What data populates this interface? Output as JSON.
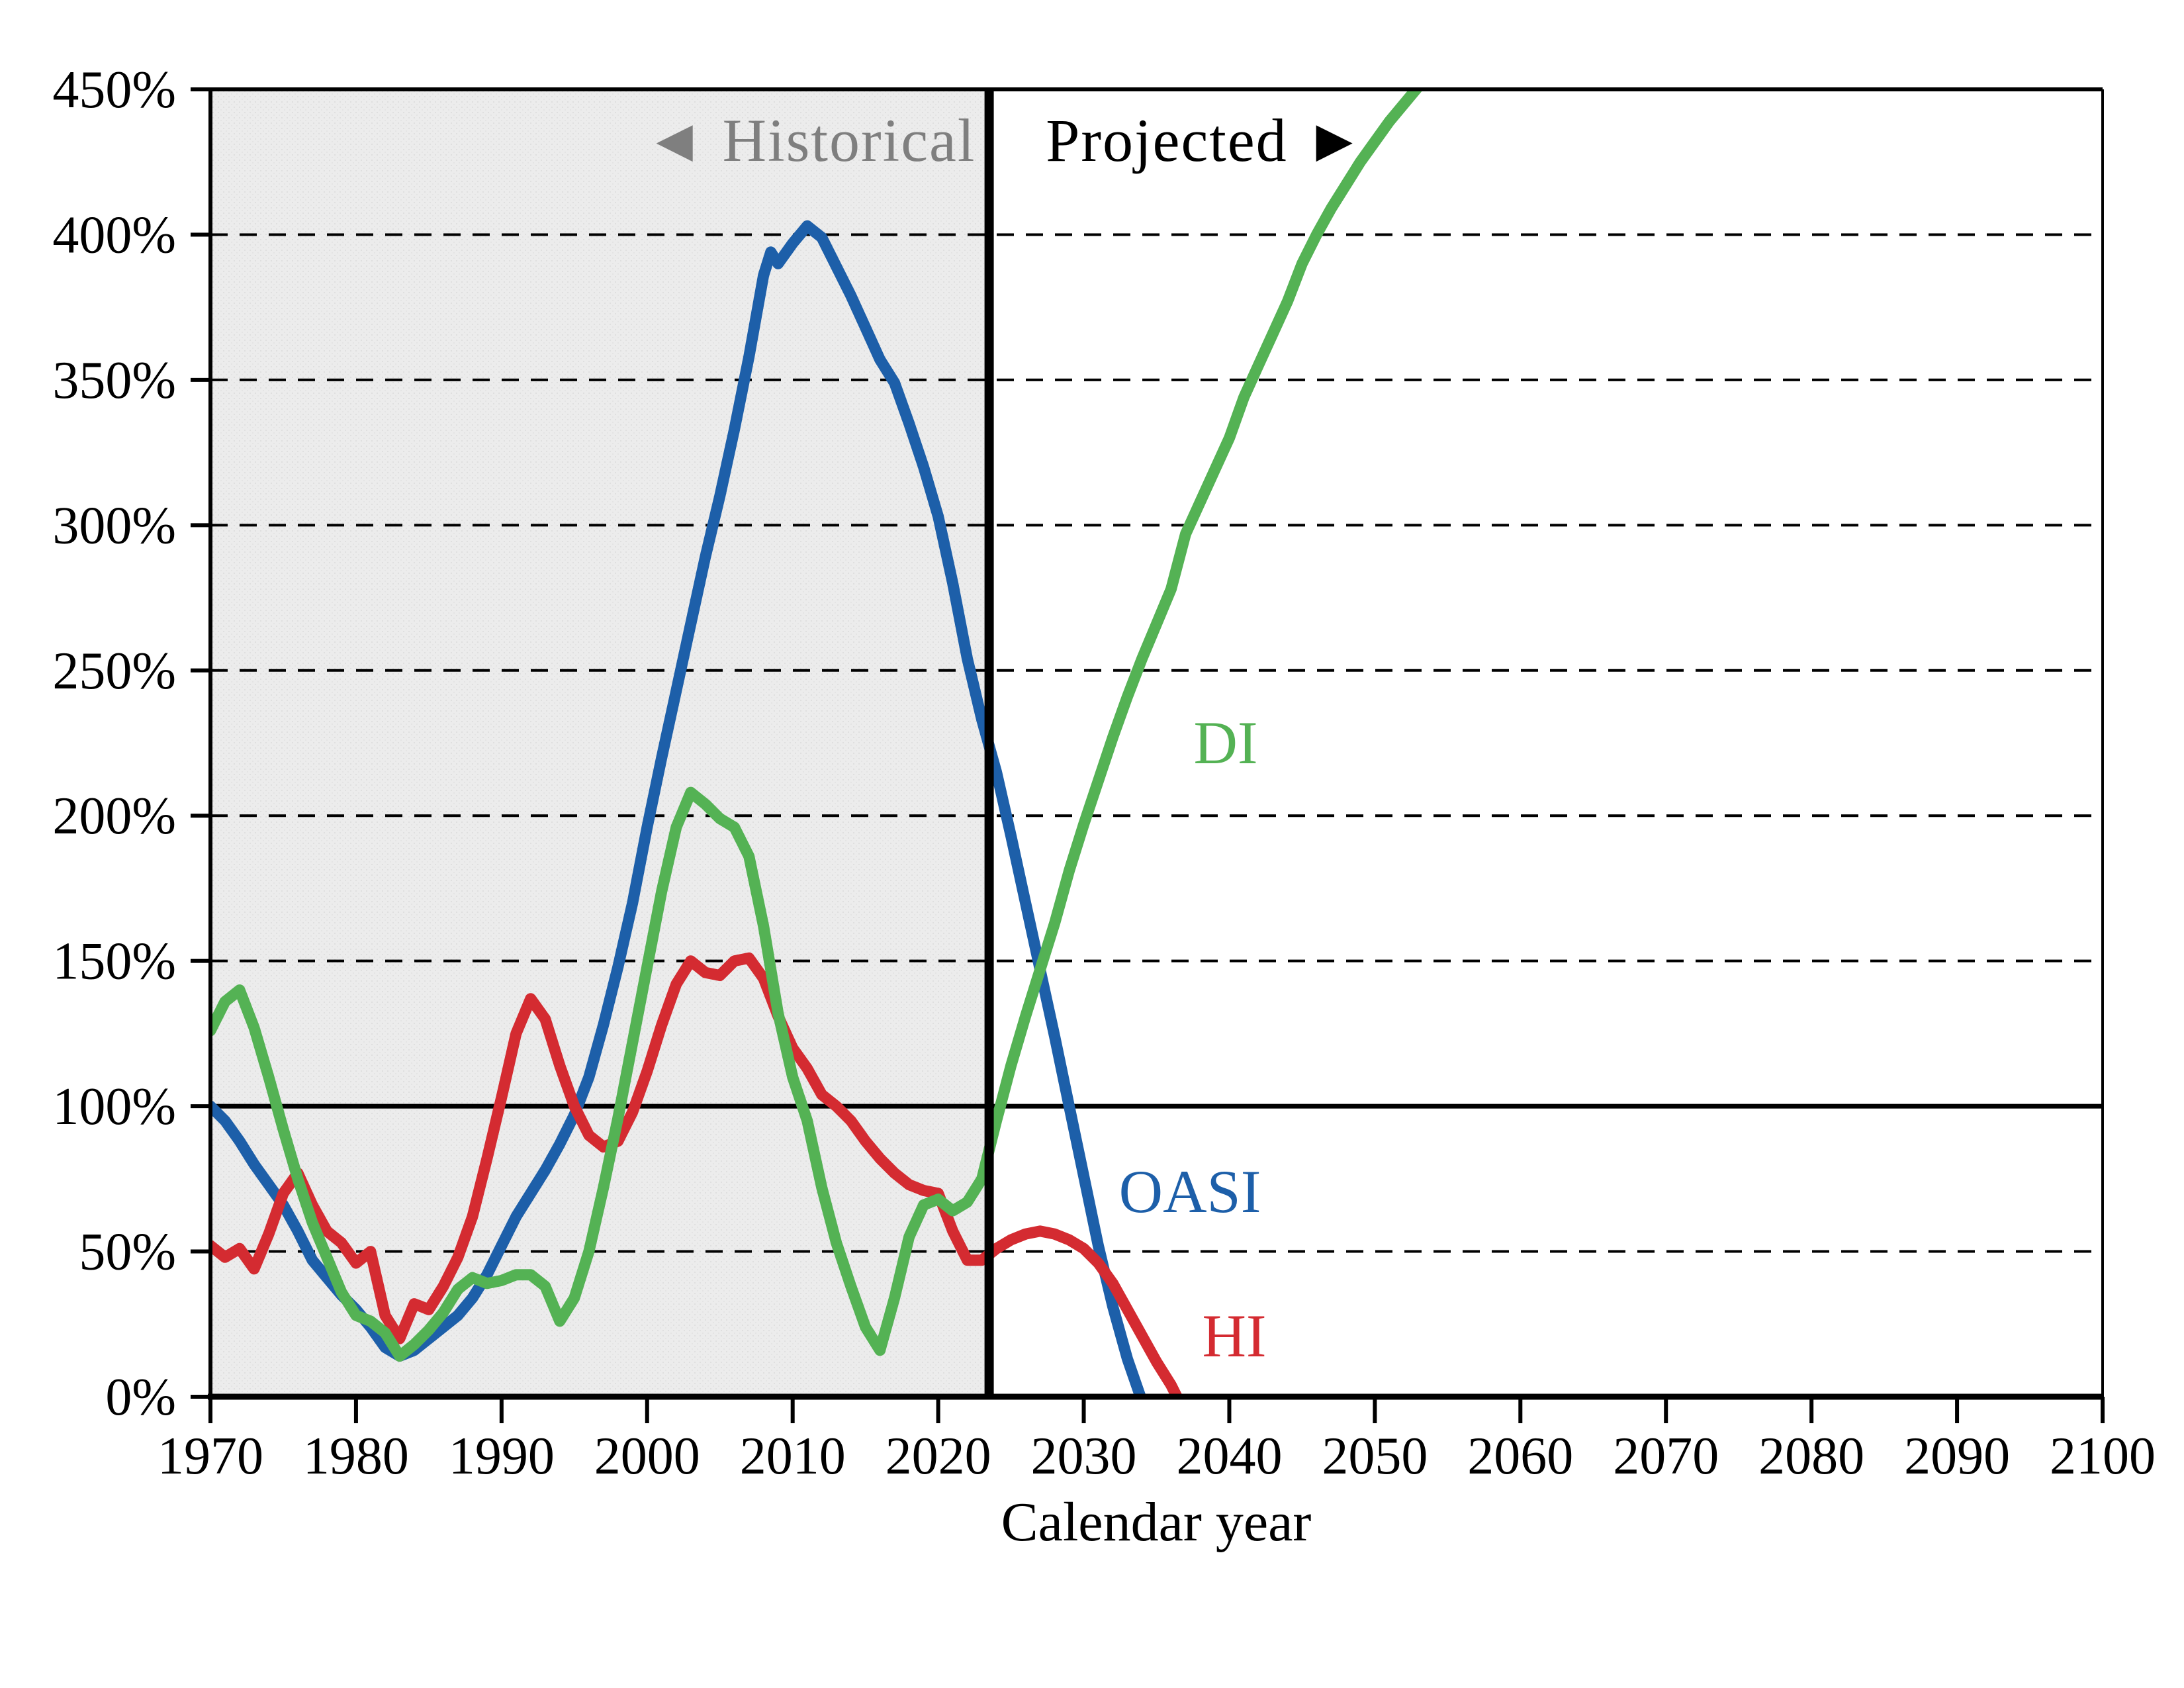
{
  "page": {
    "background": "#ffffff"
  },
  "axis_titles": {
    "x": "Calendar year"
  },
  "colors": {
    "oasi_blue": "#1D5FA9",
    "hi_red": "#D42B31",
    "di_green": "#54B254",
    "historical_fill": "#ECECEC",
    "historical_label_gray": "#7F7F7F",
    "projected_label_black": "#000000",
    "grid_black": "#000000"
  },
  "chart_data": {
    "type": "line",
    "title": "",
    "xlabel": "Calendar year",
    "ylabel": "",
    "xlim": [
      1970,
      2100
    ],
    "ylim_percent": [
      0,
      450
    ],
    "grid": "horizontal dashed every 50%, solid heavy line at 100%",
    "legend_position": "inline labels next to curves",
    "x_ticks": [
      1970,
      1980,
      1990,
      2000,
      2010,
      2020,
      2030,
      2040,
      2050,
      2060,
      2070,
      2080,
      2090,
      2100
    ],
    "y_ticks_percent": [
      0,
      50,
      100,
      150,
      200,
      250,
      300,
      350,
      400,
      450
    ],
    "y_tick_suffix": "%",
    "regions": {
      "historical": {
        "label": "◄ Historical",
        "start": 1970,
        "end": 2023.5
      },
      "projected": {
        "label": "Projected ►",
        "start": 2023.5,
        "end": 2100
      }
    },
    "reference_lines": {
      "solid_100_percent": 100
    },
    "series": [
      {
        "name": "OASI",
        "color": "#1D5FA9",
        "data": [
          [
            1970,
            100
          ],
          [
            1971,
            95
          ],
          [
            1972,
            88
          ],
          [
            1973,
            80
          ],
          [
            1974,
            73
          ],
          [
            1975,
            66
          ],
          [
            1976,
            57
          ],
          [
            1977,
            47
          ],
          [
            1978,
            41
          ],
          [
            1979,
            35
          ],
          [
            1980,
            30
          ],
          [
            1981,
            24
          ],
          [
            1982,
            17
          ],
          [
            1983,
            14
          ],
          [
            1984,
            16
          ],
          [
            1985,
            20
          ],
          [
            1986,
            24
          ],
          [
            1987,
            28
          ],
          [
            1988,
            34
          ],
          [
            1989,
            42
          ],
          [
            1990,
            52
          ],
          [
            1991,
            62
          ],
          [
            1992,
            70
          ],
          [
            1993,
            78
          ],
          [
            1994,
            87
          ],
          [
            1995,
            97
          ],
          [
            1996,
            110
          ],
          [
            1997,
            128
          ],
          [
            1998,
            148
          ],
          [
            1999,
            170
          ],
          [
            2000,
            196
          ],
          [
            2001,
            220
          ],
          [
            2002,
            243
          ],
          [
            2003,
            266
          ],
          [
            2004,
            289
          ],
          [
            2005,
            310
          ],
          [
            2006,
            333
          ],
          [
            2007,
            358
          ],
          [
            2008,
            386
          ],
          [
            2008.5,
            394
          ],
          [
            2009,
            390
          ],
          [
            2010,
            397
          ],
          [
            2011,
            403
          ],
          [
            2012,
            399
          ],
          [
            2013,
            389
          ],
          [
            2014,
            379
          ],
          [
            2015,
            368
          ],
          [
            2016,
            357
          ],
          [
            2017,
            349
          ],
          [
            2018,
            335
          ],
          [
            2019,
            320
          ],
          [
            2020,
            303
          ],
          [
            2021,
            280
          ],
          [
            2022,
            254
          ],
          [
            2023,
            233
          ],
          [
            2024,
            215
          ],
          [
            2025,
            193
          ],
          [
            2026,
            170
          ],
          [
            2027,
            147
          ],
          [
            2028,
            124
          ],
          [
            2029,
            100
          ],
          [
            2030,
            76
          ],
          [
            2031,
            52
          ],
          [
            2032,
            31
          ],
          [
            2033,
            13
          ],
          [
            2033.9,
            0
          ]
        ]
      },
      {
        "name": "HI",
        "color": "#D42B31",
        "data": [
          [
            1970,
            52
          ],
          [
            1971,
            48
          ],
          [
            1972,
            51
          ],
          [
            1973,
            44
          ],
          [
            1974,
            56
          ],
          [
            1975,
            70
          ],
          [
            1976,
            77
          ],
          [
            1977,
            66
          ],
          [
            1978,
            57
          ],
          [
            1979,
            53
          ],
          [
            1980,
            46
          ],
          [
            1981,
            50
          ],
          [
            1982,
            28
          ],
          [
            1983,
            20
          ],
          [
            1984,
            32
          ],
          [
            1985,
            30
          ],
          [
            1986,
            38
          ],
          [
            1987,
            48
          ],
          [
            1988,
            62
          ],
          [
            1989,
            82
          ],
          [
            1990,
            103
          ],
          [
            1991,
            125
          ],
          [
            1992,
            137
          ],
          [
            1993,
            130
          ],
          [
            1994,
            114
          ],
          [
            1995,
            100
          ],
          [
            1996,
            90
          ],
          [
            1997,
            86
          ],
          [
            1998,
            88
          ],
          [
            1999,
            98
          ],
          [
            2000,
            112
          ],
          [
            2001,
            128
          ],
          [
            2002,
            142
          ],
          [
            2003,
            150
          ],
          [
            2004,
            146
          ],
          [
            2005,
            145
          ],
          [
            2006,
            150
          ],
          [
            2007,
            151
          ],
          [
            2008,
            144
          ],
          [
            2009,
            131
          ],
          [
            2010,
            120
          ],
          [
            2011,
            113
          ],
          [
            2012,
            104
          ],
          [
            2013,
            100
          ],
          [
            2014,
            95
          ],
          [
            2015,
            88
          ],
          [
            2016,
            82
          ],
          [
            2017,
            77
          ],
          [
            2018,
            73
          ],
          [
            2019,
            71
          ],
          [
            2020,
            70
          ],
          [
            2021,
            57
          ],
          [
            2022,
            47
          ],
          [
            2023,
            47
          ],
          [
            2024,
            51
          ],
          [
            2025,
            54
          ],
          [
            2026,
            56
          ],
          [
            2027,
            57
          ],
          [
            2028,
            56
          ],
          [
            2029,
            54
          ],
          [
            2030,
            51
          ],
          [
            2031,
            46
          ],
          [
            2032,
            39
          ],
          [
            2033,
            30
          ],
          [
            2034,
            21
          ],
          [
            2035,
            12
          ],
          [
            2036,
            4
          ],
          [
            2036.4,
            0
          ]
        ]
      },
      {
        "name": "DI",
        "color": "#54B254",
        "data": [
          [
            1970,
            126
          ],
          [
            1971,
            136
          ],
          [
            1972,
            140
          ],
          [
            1973,
            127
          ],
          [
            1974,
            110
          ],
          [
            1975,
            92
          ],
          [
            1976,
            75
          ],
          [
            1977,
            60
          ],
          [
            1978,
            48
          ],
          [
            1979,
            36
          ],
          [
            1980,
            28
          ],
          [
            1981,
            26
          ],
          [
            1982,
            22
          ],
          [
            1983,
            14
          ],
          [
            1984,
            18
          ],
          [
            1985,
            23
          ],
          [
            1986,
            29
          ],
          [
            1987,
            37
          ],
          [
            1988,
            41
          ],
          [
            1989,
            39
          ],
          [
            1990,
            40
          ],
          [
            1991,
            42
          ],
          [
            1992,
            42
          ],
          [
            1993,
            38
          ],
          [
            1994,
            26
          ],
          [
            1995,
            34
          ],
          [
            1996,
            50
          ],
          [
            1997,
            72
          ],
          [
            1998,
            96
          ],
          [
            1999,
            122
          ],
          [
            2000,
            148
          ],
          [
            2001,
            174
          ],
          [
            2002,
            196
          ],
          [
            2003,
            208
          ],
          [
            2004,
            204
          ],
          [
            2005,
            199
          ],
          [
            2006,
            196
          ],
          [
            2007,
            186
          ],
          [
            2008,
            162
          ],
          [
            2009,
            132
          ],
          [
            2010,
            110
          ],
          [
            2011,
            95
          ],
          [
            2012,
            72
          ],
          [
            2013,
            53
          ],
          [
            2014,
            38
          ],
          [
            2015,
            24
          ],
          [
            2016,
            16
          ],
          [
            2017,
            34
          ],
          [
            2018,
            55
          ],
          [
            2019,
            66
          ],
          [
            2020,
            68
          ],
          [
            2021,
            64
          ],
          [
            2022,
            67
          ],
          [
            2023,
            75
          ],
          [
            2024,
            95
          ],
          [
            2025,
            114
          ],
          [
            2026,
            131
          ],
          [
            2027,
            147
          ],
          [
            2028,
            163
          ],
          [
            2029,
            181
          ],
          [
            2030,
            197
          ],
          [
            2031,
            212
          ],
          [
            2032,
            227
          ],
          [
            2033,
            241
          ],
          [
            2034,
            254
          ],
          [
            2035,
            266
          ],
          [
            2036,
            278
          ],
          [
            2037,
            297
          ],
          [
            2038,
            308
          ],
          [
            2039,
            319
          ],
          [
            2040,
            330
          ],
          [
            2041,
            344
          ],
          [
            2042,
            355
          ],
          [
            2043,
            366
          ],
          [
            2044,
            377
          ],
          [
            2045,
            390
          ],
          [
            2046,
            400
          ],
          [
            2047,
            409
          ],
          [
            2048,
            417
          ],
          [
            2049,
            425
          ],
          [
            2050,
            432
          ],
          [
            2051,
            439
          ],
          [
            2052,
            445
          ],
          [
            2053,
            451
          ],
          [
            2054,
            457
          ]
        ]
      }
    ]
  }
}
